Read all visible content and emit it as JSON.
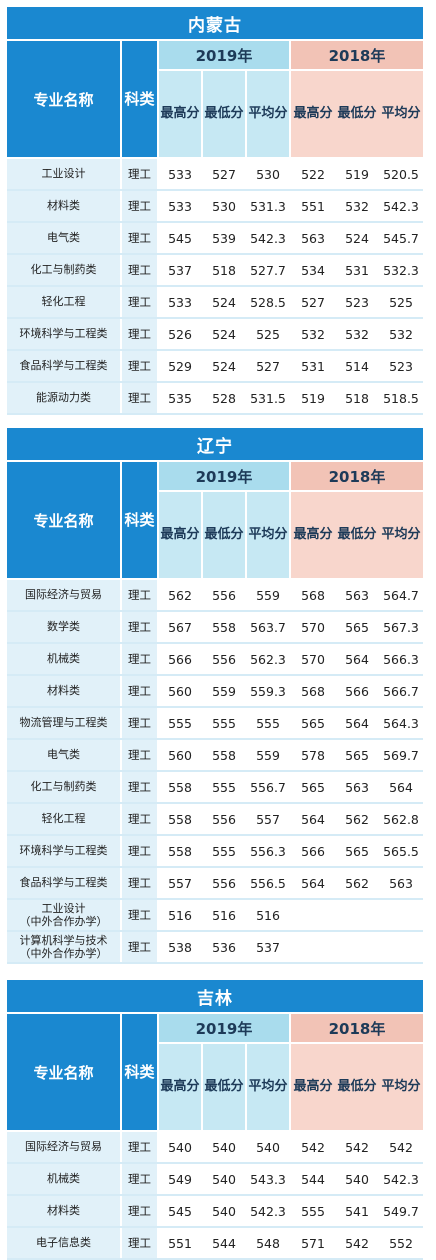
{
  "header": {
    "major": "专业名称",
    "category": "科类",
    "year_a": "2019年",
    "year_b": "2018年",
    "max": "最高分",
    "min": "最低分",
    "avg": "平均分"
  },
  "sections": [
    {
      "province": "内蒙古",
      "rows": [
        {
          "name": "工业设计",
          "cat": "理工",
          "a": [
            "533",
            "527",
            "530"
          ],
          "b": [
            "522",
            "519",
            "520.5"
          ]
        },
        {
          "name": "材料类",
          "cat": "理工",
          "a": [
            "533",
            "530",
            "531.3"
          ],
          "b": [
            "551",
            "532",
            "542.3"
          ]
        },
        {
          "name": "电气类",
          "cat": "理工",
          "a": [
            "545",
            "539",
            "542.3"
          ],
          "b": [
            "563",
            "524",
            "545.7"
          ]
        },
        {
          "name": "化工与制药类",
          "cat": "理工",
          "a": [
            "537",
            "518",
            "527.7"
          ],
          "b": [
            "534",
            "531",
            "532.3"
          ]
        },
        {
          "name": "轻化工程",
          "cat": "理工",
          "a": [
            "533",
            "524",
            "528.5"
          ],
          "b": [
            "527",
            "523",
            "525"
          ]
        },
        {
          "name": "环境科学与工程类",
          "cat": "理工",
          "a": [
            "526",
            "524",
            "525"
          ],
          "b": [
            "532",
            "532",
            "532"
          ]
        },
        {
          "name": "食品科学与工程类",
          "cat": "理工",
          "a": [
            "529",
            "524",
            "527"
          ],
          "b": [
            "531",
            "514",
            "523"
          ]
        },
        {
          "name": "能源动力类",
          "cat": "理工",
          "a": [
            "535",
            "528",
            "531.5"
          ],
          "b": [
            "519",
            "518",
            "518.5"
          ]
        }
      ]
    },
    {
      "province": "辽宁",
      "rows": [
        {
          "name": "国际经济与贸易",
          "cat": "理工",
          "a": [
            "562",
            "556",
            "559"
          ],
          "b": [
            "568",
            "563",
            "564.7"
          ]
        },
        {
          "name": "数学类",
          "cat": "理工",
          "a": [
            "567",
            "558",
            "563.7"
          ],
          "b": [
            "570",
            "565",
            "567.3"
          ]
        },
        {
          "name": "机械类",
          "cat": "理工",
          "a": [
            "566",
            "556",
            "562.3"
          ],
          "b": [
            "570",
            "564",
            "566.3"
          ]
        },
        {
          "name": "材料类",
          "cat": "理工",
          "a": [
            "560",
            "559",
            "559.3"
          ],
          "b": [
            "568",
            "566",
            "566.7"
          ]
        },
        {
          "name": "物流管理与工程类",
          "cat": "理工",
          "a": [
            "555",
            "555",
            "555"
          ],
          "b": [
            "565",
            "564",
            "564.3"
          ]
        },
        {
          "name": "电气类",
          "cat": "理工",
          "a": [
            "560",
            "558",
            "559"
          ],
          "b": [
            "578",
            "565",
            "569.7"
          ]
        },
        {
          "name": "化工与制药类",
          "cat": "理工",
          "a": [
            "558",
            "555",
            "556.7"
          ],
          "b": [
            "565",
            "563",
            "564"
          ]
        },
        {
          "name": "轻化工程",
          "cat": "理工",
          "a": [
            "558",
            "556",
            "557"
          ],
          "b": [
            "564",
            "562",
            "562.8"
          ]
        },
        {
          "name": "环境科学与工程类",
          "cat": "理工",
          "a": [
            "558",
            "555",
            "556.3"
          ],
          "b": [
            "566",
            "565",
            "565.5"
          ]
        },
        {
          "name": "食品科学与工程类",
          "cat": "理工",
          "a": [
            "557",
            "556",
            "556.5"
          ],
          "b": [
            "564",
            "562",
            "563"
          ]
        },
        {
          "name": "工业设计\n（中外合作办学）",
          "cat": "理工",
          "a": [
            "516",
            "516",
            "516"
          ],
          "b": [
            "",
            "",
            ""
          ]
        },
        {
          "name": "计算机科学与技术\n（中外合作办学）",
          "cat": "理工",
          "a": [
            "538",
            "536",
            "537"
          ],
          "b": [
            "",
            "",
            ""
          ]
        }
      ]
    },
    {
      "province": "吉林",
      "rows": [
        {
          "name": "国际经济与贸易",
          "cat": "理工",
          "a": [
            "540",
            "540",
            "540"
          ],
          "b": [
            "542",
            "542",
            "542"
          ]
        },
        {
          "name": "机械类",
          "cat": "理工",
          "a": [
            "549",
            "540",
            "543.3"
          ],
          "b": [
            "544",
            "540",
            "542.3"
          ]
        },
        {
          "name": "材料类",
          "cat": "理工",
          "a": [
            "545",
            "540",
            "542.3"
          ],
          "b": [
            "555",
            "541",
            "549.7"
          ]
        },
        {
          "name": "电子信息类",
          "cat": "理工",
          "a": [
            "551",
            "544",
            "548"
          ],
          "b": [
            "571",
            "542",
            "552"
          ]
        }
      ]
    }
  ]
}
